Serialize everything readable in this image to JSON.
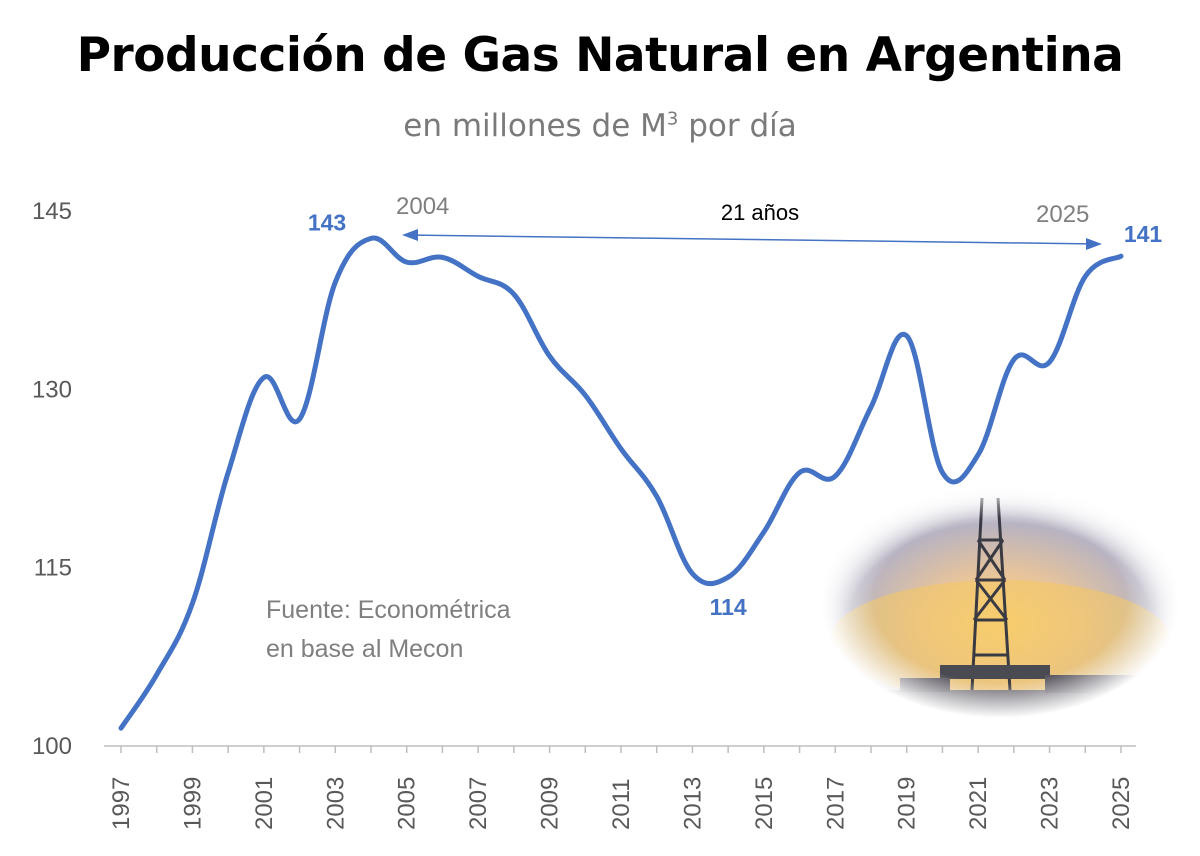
{
  "title": "Producción de Gas Natural en Argentina",
  "subtitle": {
    "text": "en millones de M",
    "sup": "3",
    "suffix": " por día"
  },
  "source": {
    "line1": "Fuente: Econométrica",
    "line2": "en base al Mecon"
  },
  "colors": {
    "line": "#4472c4",
    "axis": "#bfbfbf",
    "tick_text": "#595959"
  },
  "image_description_icon": "oil-rig-sunset-photo",
  "chart_data": {
    "type": "line",
    "title": "Producción de Gas Natural en Argentina",
    "ylabel": "millones de M3 por día",
    "ylim": [
      100,
      145
    ],
    "yticks": [
      100,
      115,
      130,
      145
    ],
    "xticks": [
      "1997",
      "1999",
      "2001",
      "2003",
      "2005",
      "2007",
      "2009",
      "2011",
      "2013",
      "2015",
      "2017",
      "2019",
      "2021",
      "2023",
      "2025"
    ],
    "x": [
      1997,
      1998,
      1999,
      2000,
      2001,
      2002,
      2003,
      2004,
      2005,
      2006,
      2007,
      2008,
      2009,
      2010,
      2011,
      2012,
      2013,
      2014,
      2015,
      2016,
      2017,
      2018,
      2019,
      2020,
      2021,
      2022,
      2023,
      2024,
      2025
    ],
    "values": [
      101.5,
      106,
      112,
      123,
      131,
      127.5,
      139,
      142.7,
      140.7,
      141.1,
      139.5,
      138,
      132.8,
      129.5,
      125,
      121,
      114.5,
      114.2,
      118,
      123,
      122.7,
      128.5,
      134.5,
      123,
      124.5,
      132.5,
      132.3,
      139.5,
      141.2
    ],
    "data_labels": [
      {
        "year": 2004,
        "text": "143"
      },
      {
        "year": 2014,
        "text": "114"
      },
      {
        "year": 2025,
        "text": "141"
      }
    ],
    "annotation": {
      "from_label": "2004",
      "to_label": "2025",
      "span_label": "21 años"
    }
  }
}
